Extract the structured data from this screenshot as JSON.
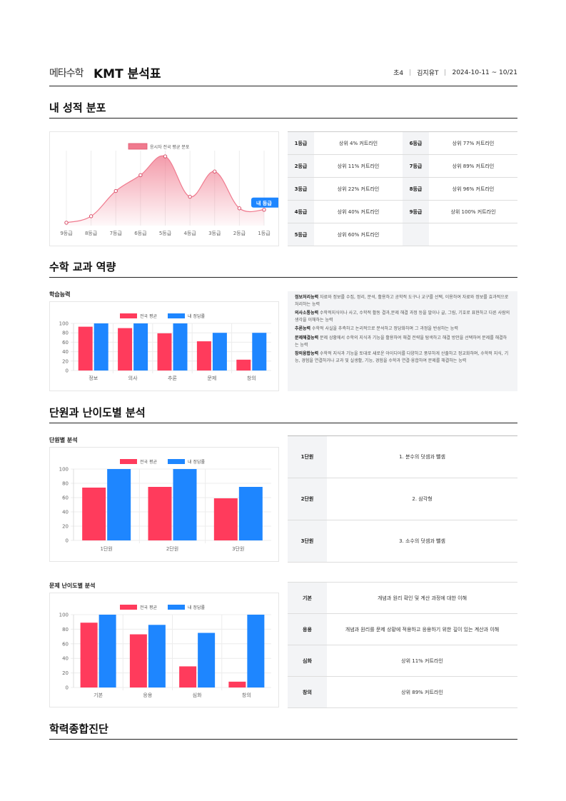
{
  "header": {
    "logo_text": "메타수학",
    "title": "KMT 분석표",
    "grade": "초4",
    "name": "김지유T",
    "period": "2024-10-11 ~ 10/21"
  },
  "colors": {
    "national_avg": "#ff3b5c",
    "my_rate": "#1e86ff",
    "distribution": "#f07a8e"
  },
  "sections": {
    "distribution": "내 성적 분포",
    "competency": "수학 교과 역량",
    "unit_difficulty": "단원과 난이도별 분석",
    "diagnosis": "학력종합진단"
  },
  "subtitles": {
    "learning": "학습능력",
    "unit": "단원별 분석",
    "difficulty": "문제 난이도별 분석"
  },
  "grades": [
    {
      "grade": "1등급",
      "cutline": "상위 4% 커트라인"
    },
    {
      "grade": "6등급",
      "cutline": "상위 77% 커트라인"
    },
    {
      "grade": "2등급",
      "cutline": "상위 11% 커트라인"
    },
    {
      "grade": "7등급",
      "cutline": "상위 89% 커트라인"
    },
    {
      "grade": "3등급",
      "cutline": "상위 22% 커트라인"
    },
    {
      "grade": "8등급",
      "cutline": "상위 96% 커트라인"
    },
    {
      "grade": "4등급",
      "cutline": "상위 40% 커트라인"
    },
    {
      "grade": "9등급",
      "cutline": "상위 100% 커트라인"
    },
    {
      "grade": "5등급",
      "cutline": "상위 60% 커트라인"
    }
  ],
  "abilities": [
    {
      "name": "정보처리능력",
      "desc": "자료와 정보를 수집, 정리, 분석, 활용하고 공학적 도구나 교구를 선택, 이용하여 자료와 정보를 효과적으로 처리하는 능력"
    },
    {
      "name": "의사소통능력",
      "desc": "수학적지식이나 사고, 수학적 활동 결과,문제 해결 과정 등을 말이나 글, 그림, 기호로 표현하고 다른 사람의 생각을 이해하는 능력"
    },
    {
      "name": "추론능력",
      "desc": "수학적 사실을 추측하고 논리적으로 분석하고 정당화하며 그 과정을 반성하는 능력"
    },
    {
      "name": "문제해결능력",
      "desc": "문제 상황에서 수학의 지식과 기능을 활용하여 해결 전략을 탐색하고 해결 방안을 선택하여 문제를 해결하는 능력"
    },
    {
      "name": "창의융합능력",
      "desc": "수학적 지식과 기능을 토대로 새로운 아이디어를 다양하고 풍부하게 산출하고 정교화하며, 수학적 지식, 기능, 경험을 연결하거나 교과 및 실생활, 기능, 경험을 수학과 연결·융합하여 문제를 해결하는 능력"
    }
  ],
  "units": [
    {
      "label": "1단원",
      "name": "1. 분수의 덧셈과 뺄셈"
    },
    {
      "label": "2단원",
      "name": "2. 삼각형"
    },
    {
      "label": "3단원",
      "name": "3. 소수의 덧셈과 뺄셈"
    }
  ],
  "difficulty_rows": [
    {
      "label": "기본",
      "desc": "개념과 원리 확인 및 계산 과정에 대한 이해"
    },
    {
      "label": "응용",
      "desc": "개념과 원리를 문제 상황에 적용하고 응용하기 위한 깊이 있는 계산과 이해"
    },
    {
      "label": "심화",
      "desc": "상위 11% 커트라인"
    },
    {
      "label": "창의",
      "desc": "상위 89% 커트라인"
    }
  ],
  "chart_data": [
    {
      "type": "area",
      "legend": "응시자 전국 평균 분포",
      "categories": [
        "9등급",
        "8등급",
        "7등급",
        "6등급",
        "5등급",
        "4등급",
        "3등급",
        "2등급",
        "1등급"
      ],
      "values": [
        4,
        13,
        48,
        70,
        96,
        40,
        75,
        24,
        22
      ],
      "ylim": [
        0,
        100
      ],
      "marker": {
        "label": "내 등급",
        "index": 8
      }
    },
    {
      "type": "bar",
      "legend_position": "top",
      "categories": [
        "정보",
        "의사",
        "추론",
        "문제",
        "창의"
      ],
      "series": [
        {
          "name": "전국 평균",
          "values": [
            93,
            90,
            79,
            62,
            23
          ]
        },
        {
          "name": "내 정답률",
          "values": [
            100,
            100,
            100,
            80,
            80
          ]
        }
      ],
      "ylim": [
        0,
        100
      ],
      "yticks": [
        0,
        20,
        40,
        60,
        80,
        100
      ]
    },
    {
      "type": "bar",
      "legend_position": "top",
      "categories": [
        "1단원",
        "2단원",
        "3단원"
      ],
      "series": [
        {
          "name": "전국 평균",
          "values": [
            74,
            75,
            59
          ]
        },
        {
          "name": "내 정답률",
          "values": [
            100,
            100,
            75
          ]
        }
      ],
      "ylim": [
        0,
        100
      ],
      "yticks": [
        0,
        20,
        40,
        60,
        80,
        100
      ]
    },
    {
      "type": "bar",
      "legend_position": "top",
      "categories": [
        "기본",
        "응용",
        "심화",
        "창의"
      ],
      "series": [
        {
          "name": "전국 평균",
          "values": [
            89,
            73,
            29,
            8
          ]
        },
        {
          "name": "내 정답률",
          "values": [
            100,
            86,
            75,
            100
          ]
        }
      ],
      "ylim": [
        0,
        100
      ],
      "yticks": [
        0,
        20,
        40,
        60,
        80,
        100
      ]
    }
  ]
}
